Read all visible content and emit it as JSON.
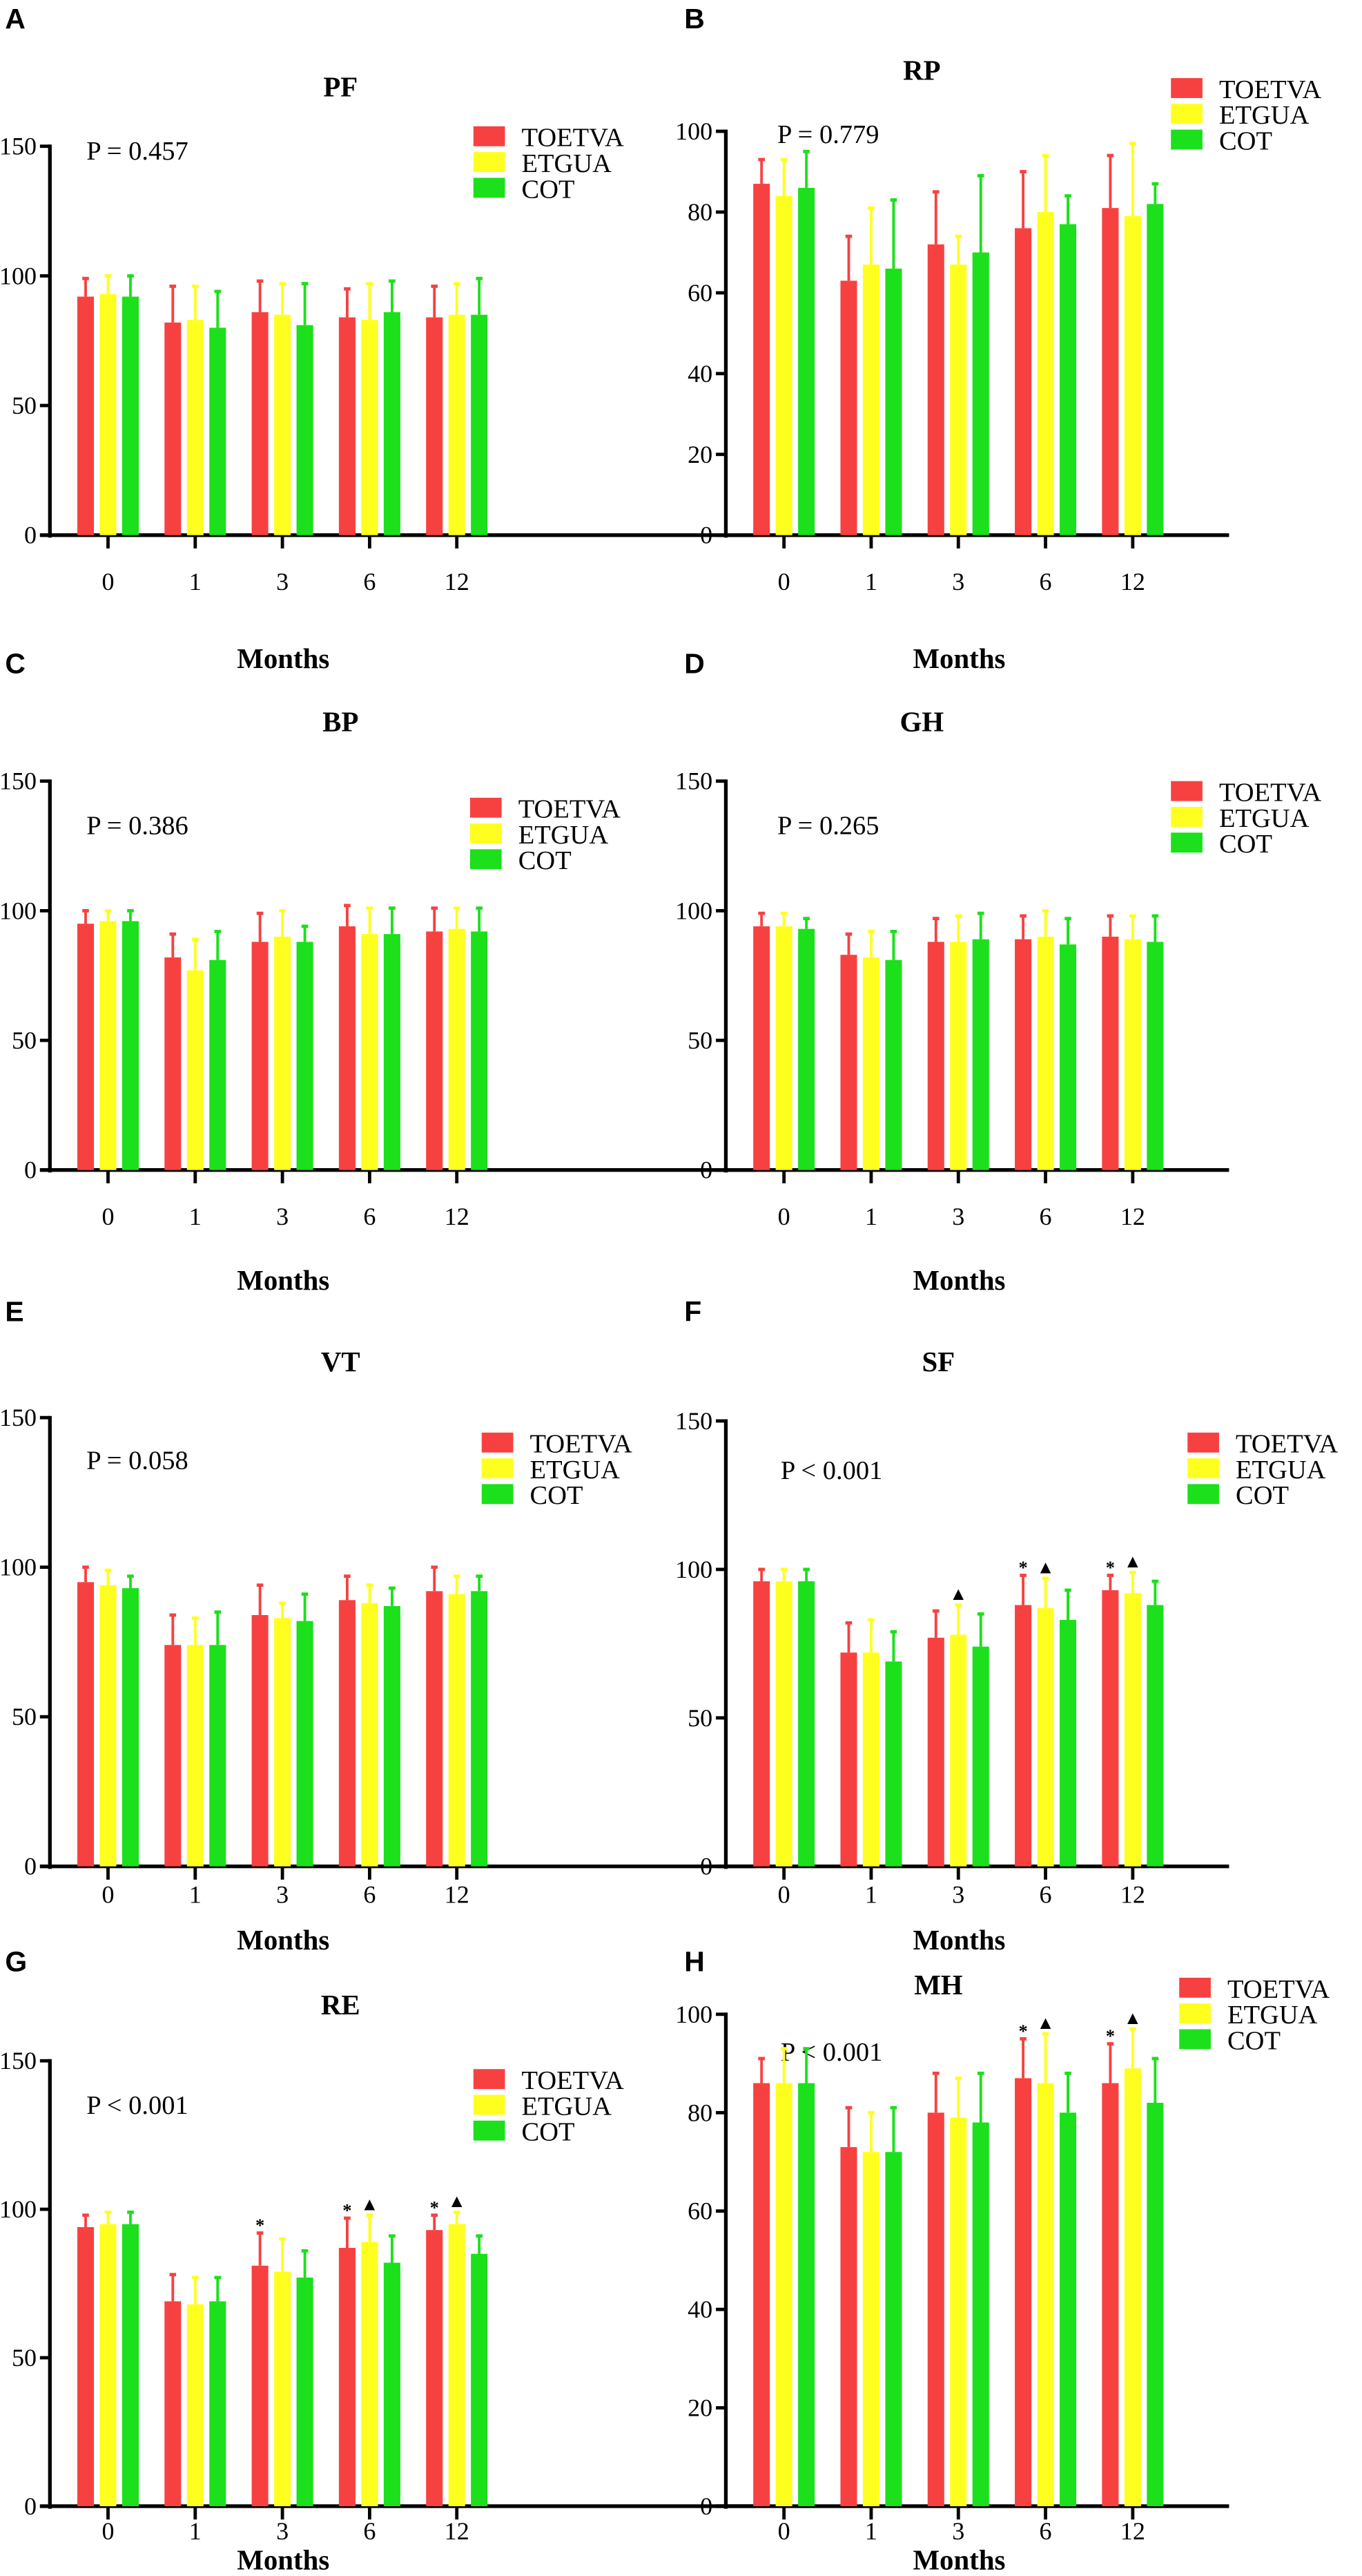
{
  "colors": {
    "TOETVA": "#f74141",
    "ETGUA": "#ffff1f",
    "COT": "#1be01b"
  },
  "chart_data": [
    {
      "type": "bar",
      "panel": "A",
      "title": "PF",
      "p_value": "P = 0.457",
      "xlabel": "Months",
      "ylabel": "",
      "ylim": [
        0,
        150
      ],
      "yticks": [
        0,
        50,
        100,
        150
      ],
      "categories": [
        "0",
        "1",
        "3",
        "6",
        "12"
      ],
      "series": [
        {
          "name": "TOETVA",
          "values": [
            92,
            82,
            86,
            84,
            84
          ],
          "err_top": [
            99,
            96,
            98,
            95,
            96
          ]
        },
        {
          "name": "ETGUA",
          "values": [
            93,
            83,
            85,
            83,
            85
          ],
          "err_top": [
            100,
            96,
            97,
            97,
            97
          ]
        },
        {
          "name": "COT",
          "values": [
            92,
            80,
            81,
            86,
            85
          ],
          "err_top": [
            100,
            94,
            97,
            98,
            99
          ]
        }
      ],
      "annotations": []
    },
    {
      "type": "bar",
      "panel": "B",
      "title": "RP",
      "p_value": "P = 0.779",
      "xlabel": "Months",
      "ylabel": "",
      "ylim": [
        0,
        100
      ],
      "yticks": [
        0,
        20,
        40,
        60,
        80,
        100
      ],
      "categories": [
        "0",
        "1",
        "3",
        "6",
        "12"
      ],
      "series": [
        {
          "name": "TOETVA",
          "values": [
            87,
            63,
            72,
            76,
            81
          ],
          "err_top": [
            93,
            74,
            85,
            90,
            94
          ]
        },
        {
          "name": "ETGUA",
          "values": [
            84,
            67,
            67,
            80,
            79
          ],
          "err_top": [
            93,
            81,
            74,
            94,
            97
          ]
        },
        {
          "name": "COT",
          "values": [
            86,
            66,
            70,
            77,
            82
          ],
          "err_top": [
            95,
            83,
            89,
            84,
            87
          ]
        }
      ],
      "annotations": []
    },
    {
      "type": "bar",
      "panel": "C",
      "title": "BP",
      "p_value": "P = 0.386",
      "xlabel": "Months",
      "ylabel": "",
      "ylim": [
        0,
        150
      ],
      "yticks": [
        0,
        50,
        100,
        150
      ],
      "categories": [
        "0",
        "1",
        "3",
        "6",
        "12"
      ],
      "series": [
        {
          "name": "TOETVA",
          "values": [
            95,
            82,
            88,
            94,
            92
          ],
          "err_top": [
            100,
            91,
            99,
            102,
            101
          ]
        },
        {
          "name": "ETGUA",
          "values": [
            96,
            77,
            90,
            91,
            93
          ],
          "err_top": [
            100,
            89,
            100,
            101,
            101
          ]
        },
        {
          "name": "COT",
          "values": [
            96,
            81,
            88,
            91,
            92
          ],
          "err_top": [
            100,
            92,
            94,
            101,
            101
          ]
        }
      ],
      "annotations": []
    },
    {
      "type": "bar",
      "panel": "D",
      "title": "GH",
      "p_value": "P = 0.265",
      "xlabel": "Months",
      "ylabel": "",
      "ylim": [
        0,
        150
      ],
      "yticks": [
        0,
        50,
        100,
        150
      ],
      "categories": [
        "0",
        "1",
        "3",
        "6",
        "12"
      ],
      "series": [
        {
          "name": "TOETVA",
          "values": [
            94,
            83,
            88,
            89,
            90
          ],
          "err_top": [
            99,
            91,
            97,
            98,
            98
          ]
        },
        {
          "name": "ETGUA",
          "values": [
            94,
            82,
            88,
            90,
            89
          ],
          "err_top": [
            99,
            92,
            98,
            100,
            98
          ]
        },
        {
          "name": "COT",
          "values": [
            93,
            81,
            89,
            87,
            88
          ],
          "err_top": [
            97,
            92,
            99,
            97,
            98
          ]
        }
      ],
      "annotations": []
    },
    {
      "type": "bar",
      "panel": "E",
      "title": "VT",
      "p_value": "P = 0.058",
      "xlabel": "Months",
      "ylabel": "",
      "ylim": [
        0,
        150
      ],
      "yticks": [
        0,
        50,
        100,
        150
      ],
      "categories": [
        "0",
        "1",
        "3",
        "6",
        "12"
      ],
      "series": [
        {
          "name": "TOETVA",
          "values": [
            95,
            74,
            84,
            89,
            92
          ],
          "err_top": [
            100,
            84,
            94,
            97,
            100
          ]
        },
        {
          "name": "ETGUA",
          "values": [
            94,
            74,
            83,
            88,
            91
          ],
          "err_top": [
            99,
            83,
            88,
            94,
            97
          ]
        },
        {
          "name": "COT",
          "values": [
            93,
            74,
            82,
            87,
            92
          ],
          "err_top": [
            97,
            85,
            91,
            93,
            97
          ]
        }
      ],
      "annotations": []
    },
    {
      "type": "bar",
      "panel": "F",
      "title": "SF",
      "p_value": "P < 0.001",
      "xlabel": "Months",
      "ylabel": "",
      "ylim": [
        0,
        150
      ],
      "yticks": [
        0,
        50,
        100,
        150
      ],
      "categories": [
        "0",
        "1",
        "3",
        "6",
        "12"
      ],
      "series": [
        {
          "name": "TOETVA",
          "values": [
            96,
            72,
            77,
            88,
            93
          ],
          "err_top": [
            100,
            82,
            86,
            98,
            98
          ]
        },
        {
          "name": "ETGUA",
          "values": [
            96,
            72,
            78,
            87,
            92
          ],
          "err_top": [
            100,
            83,
            88,
            97,
            99
          ]
        },
        {
          "name": "COT",
          "values": [
            96,
            69,
            74,
            83,
            88
          ],
          "err_top": [
            100,
            79,
            85,
            93,
            96
          ]
        }
      ],
      "annotations": [
        {
          "category": "3",
          "series": "ETGUA",
          "mark": "▲"
        },
        {
          "category": "6",
          "series": "TOETVA",
          "mark": "*"
        },
        {
          "category": "6",
          "series": "ETGUA",
          "mark": "▲"
        },
        {
          "category": "12",
          "series": "TOETVA",
          "mark": "*"
        },
        {
          "category": "12",
          "series": "ETGUA",
          "mark": "▲"
        }
      ]
    },
    {
      "type": "bar",
      "panel": "G",
      "title": "RE",
      "p_value": "P < 0.001",
      "xlabel": "Months",
      "ylabel": "",
      "ylim": [
        0,
        150
      ],
      "yticks": [
        0,
        50,
        100,
        150
      ],
      "categories": [
        "0",
        "1",
        "3",
        "6",
        "12"
      ],
      "series": [
        {
          "name": "TOETVA",
          "values": [
            94,
            69,
            81,
            87,
            93
          ],
          "err_top": [
            98,
            78,
            92,
            97,
            98
          ]
        },
        {
          "name": "ETGUA",
          "values": [
            95,
            68,
            79,
            89,
            95
          ],
          "err_top": [
            99,
            77,
            90,
            98,
            99
          ]
        },
        {
          "name": "COT",
          "values": [
            95,
            69,
            77,
            82,
            85
          ],
          "err_top": [
            99,
            77,
            86,
            91,
            91
          ]
        }
      ],
      "annotations": [
        {
          "category": "3",
          "series": "TOETVA",
          "mark": "*"
        },
        {
          "category": "6",
          "series": "TOETVA",
          "mark": "*"
        },
        {
          "category": "6",
          "series": "ETGUA",
          "mark": "▲"
        },
        {
          "category": "12",
          "series": "TOETVA",
          "mark": "*"
        },
        {
          "category": "12",
          "series": "ETGUA",
          "mark": "▲"
        }
      ]
    },
    {
      "type": "bar",
      "panel": "H",
      "title": "MH",
      "p_value": "P < 0.001",
      "xlabel": "Months",
      "ylabel": "",
      "ylim": [
        0,
        100
      ],
      "yticks": [
        0,
        20,
        40,
        60,
        80,
        100
      ],
      "categories": [
        "0",
        "1",
        "3",
        "6",
        "12"
      ],
      "series": [
        {
          "name": "TOETVA",
          "values": [
            86,
            73,
            80,
            87,
            86
          ],
          "err_top": [
            91,
            81,
            88,
            95,
            94
          ]
        },
        {
          "name": "ETGUA",
          "values": [
            86,
            72,
            79,
            86,
            89
          ],
          "err_top": [
            93,
            80,
            87,
            96,
            97
          ]
        },
        {
          "name": "COT",
          "values": [
            86,
            72,
            78,
            80,
            82
          ],
          "err_top": [
            93,
            81,
            88,
            88,
            91
          ]
        }
      ],
      "annotations": [
        {
          "category": "6",
          "series": "TOETVA",
          "mark": "*"
        },
        {
          "category": "6",
          "series": "ETGUA",
          "mark": "▲"
        },
        {
          "category": "12",
          "series": "TOETVA",
          "mark": "*"
        },
        {
          "category": "12",
          "series": "ETGUA",
          "mark": "▲"
        }
      ]
    }
  ]
}
